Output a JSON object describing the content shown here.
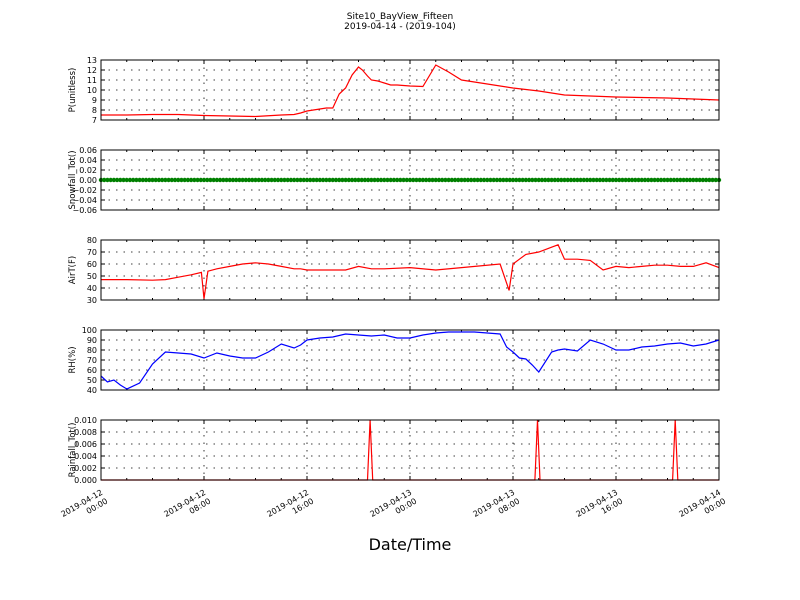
{
  "figure": {
    "title_line1": "Site10_BayView_Fifteen",
    "title_line2": "2019-04-14 - (2019-104)",
    "xlabel": "Date/Time"
  },
  "colors": {
    "red": "#ff0000",
    "green": "#008000",
    "blue": "#0000ff"
  },
  "chart_data": [
    {
      "type": "line",
      "ylabel": "P(unitless)",
      "ylim": [
        7,
        13
      ],
      "yticks": [
        "7",
        "8",
        "9",
        "10",
        "11",
        "12",
        "13"
      ],
      "color": "red",
      "grid": true,
      "x": [
        0,
        2,
        4,
        6,
        7,
        8,
        10,
        12,
        14,
        15,
        15.5,
        16,
        16.5,
        17,
        17.5,
        18,
        18.5,
        19,
        19.5,
        20,
        20.3,
        20.7,
        21,
        21.5,
        22,
        22.5,
        23,
        24,
        25,
        26,
        27,
        28,
        28.5,
        29,
        30,
        32,
        34,
        36,
        38,
        40,
        42,
        44,
        46,
        48
      ],
      "values": [
        7.5,
        7.5,
        7.55,
        7.55,
        7.5,
        7.45,
        7.4,
        7.35,
        7.5,
        7.55,
        7.7,
        7.9,
        8,
        8.1,
        8.2,
        8.2,
        9.6,
        10.2,
        11.5,
        12.3,
        12,
        11.4,
        11,
        10.9,
        10.7,
        10.5,
        10.5,
        10.4,
        10.35,
        12.5,
        11.8,
        11,
        10.9,
        10.8,
        10.6,
        10.2,
        9.9,
        9.5,
        9.4,
        9.3,
        9.25,
        9.2,
        9.1,
        9
      ]
    },
    {
      "type": "scatter",
      "ylabel": "Snowfall_Tot()",
      "ylim": [
        -0.06,
        0.06
      ],
      "yticks": [
        "−0.06",
        "−0.04",
        "−0.02",
        "0.00",
        "0.02",
        "0.04",
        "0.06"
      ],
      "color": "green",
      "grid": true,
      "x_range": [
        0,
        48
      ],
      "constant_value": 0.0
    },
    {
      "type": "line",
      "ylabel": "AirT(F)",
      "ylim": [
        30,
        80
      ],
      "yticks": [
        "30",
        "40",
        "50",
        "60",
        "70",
        "80"
      ],
      "color": "red",
      "grid": true,
      "x": [
        0,
        2,
        4,
        5,
        6,
        7,
        7.8,
        8,
        8.3,
        9,
        10,
        11,
        12,
        13,
        14,
        15,
        15.5,
        16,
        17,
        18,
        19,
        20,
        21,
        22,
        24,
        26,
        28,
        31,
        31.7,
        32,
        32.5,
        33,
        34,
        35,
        35.5,
        36,
        36.5,
        37,
        38,
        39,
        40,
        41,
        42,
        43,
        44,
        45,
        46,
        47,
        48
      ],
      "values": [
        47,
        47,
        46.5,
        47,
        49,
        51,
        53,
        31,
        54,
        56,
        58,
        60,
        61,
        60,
        58,
        56,
        56,
        55,
        55,
        55,
        55,
        58,
        56,
        56,
        57,
        55,
        57,
        60,
        38,
        60,
        64,
        68,
        70,
        74,
        76,
        64,
        64,
        64,
        63,
        55,
        58,
        57,
        58,
        59,
        59,
        58,
        58,
        61,
        57
      ]
    },
    {
      "type": "line",
      "ylabel": "RH(%)",
      "ylim": [
        40,
        100
      ],
      "yticks": [
        "40",
        "50",
        "60",
        "70",
        "80",
        "90",
        "100"
      ],
      "color": "blue",
      "grid": true,
      "x": [
        0,
        0.5,
        1,
        1.5,
        2,
        3,
        4,
        5,
        6,
        7,
        8,
        9,
        10,
        11,
        12,
        13,
        14,
        15,
        15.5,
        16,
        17,
        18,
        19,
        20,
        21,
        22,
        23,
        24,
        25,
        26,
        27,
        28,
        29,
        30,
        31,
        31.5,
        32,
        32.5,
        33,
        33.5,
        34,
        35,
        35.5,
        36,
        37,
        38,
        39,
        40,
        41,
        42,
        43,
        44,
        45,
        46,
        47,
        48
      ],
      "values": [
        54,
        48,
        50,
        45,
        41,
        47,
        66,
        78,
        77,
        76,
        72,
        77,
        74,
        72,
        72,
        78,
        86,
        82,
        85,
        90,
        92,
        93,
        96,
        95,
        94,
        95,
        92,
        92,
        95,
        97,
        98,
        98,
        98,
        97,
        96,
        83,
        78,
        72,
        71,
        65,
        58,
        78,
        80,
        81,
        79,
        90,
        86,
        80,
        80,
        83,
        84,
        86,
        87,
        84,
        86,
        90
      ]
    },
    {
      "type": "line",
      "ylabel": "Rainfall_Tot()",
      "ylim": [
        0,
        0.01
      ],
      "yticks": [
        "0.000",
        "0.002",
        "0.004",
        "0.006",
        "0.008",
        "0.010"
      ],
      "color": "red",
      "grid": true,
      "x": [
        0,
        20.7,
        20.9,
        21.1,
        33.7,
        33.9,
        34.1,
        44.4,
        44.6,
        44.8,
        48
      ],
      "values": [
        0,
        0,
        0.01,
        0,
        0,
        0.01,
        0,
        0,
        0.01,
        0,
        0
      ]
    }
  ],
  "x_axis": {
    "range": [
      0,
      48
    ],
    "ticks": [
      {
        "x": 0,
        "line1": "2019-04-12",
        "line2": "00:00"
      },
      {
        "x": 8,
        "line1": "2019-04-12",
        "line2": "08:00"
      },
      {
        "x": 16,
        "line1": "2019-04-12",
        "line2": "16:00"
      },
      {
        "x": 24,
        "line1": "2019-04-13",
        "line2": "00:00"
      },
      {
        "x": 32,
        "line1": "2019-04-13",
        "line2": "08:00"
      },
      {
        "x": 40,
        "line1": "2019-04-13",
        "line2": "16:00"
      },
      {
        "x": 48,
        "line1": "2019-04-14",
        "line2": "00:00"
      }
    ]
  }
}
